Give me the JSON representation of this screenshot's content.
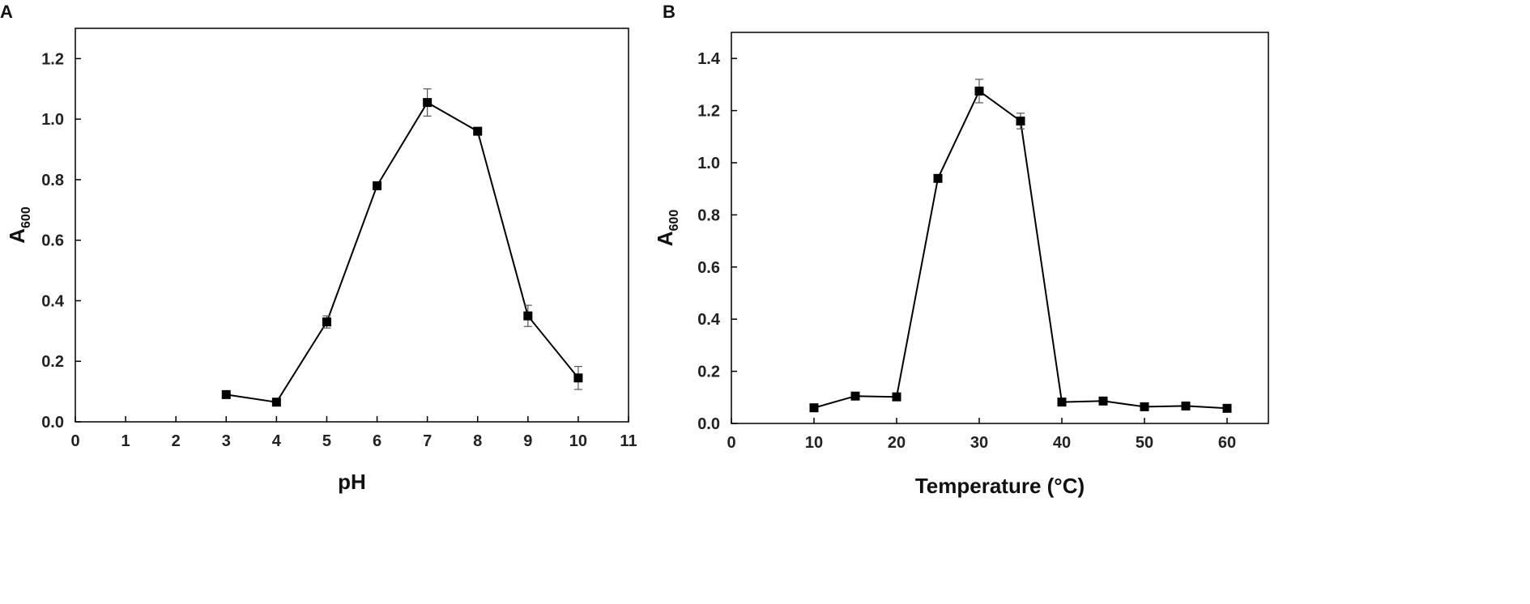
{
  "chart_data": [
    {
      "panel": "A",
      "type": "line",
      "xlabel": "pH",
      "ylabel_main": "A",
      "ylabel_sub": "600",
      "xlim": [
        0,
        11
      ],
      "ylim": [
        0,
        1.3
      ],
      "xticks": [
        0,
        1,
        2,
        3,
        4,
        5,
        6,
        7,
        8,
        9,
        10,
        11
      ],
      "xtick_labels": [
        "0",
        "1",
        "2",
        "3",
        "4",
        "5",
        "6",
        "7",
        "8",
        "9",
        "10",
        "11"
      ],
      "yticks": [
        0,
        0.2,
        0.4,
        0.6,
        0.8,
        1.0,
        1.2
      ],
      "ytick_labels": [
        "0.0",
        "0.2",
        "0.4",
        "0.6",
        "0.8",
        "1.0",
        "1.2"
      ],
      "grid": false,
      "color": "#000000",
      "marker": "square",
      "series": [
        {
          "x": [
            3,
            4,
            5,
            6,
            7,
            8,
            9,
            10
          ],
          "y": [
            0.09,
            0.065,
            0.33,
            0.78,
            1.055,
            0.96,
            0.35,
            0.145
          ],
          "err": [
            0,
            0,
            0.02,
            0,
            0.045,
            0,
            0.035,
            0.038
          ]
        }
      ]
    },
    {
      "panel": "B",
      "type": "line",
      "xlabel": "Temperature (°C)",
      "ylabel_main": "A",
      "ylabel_sub": "600",
      "xlim": [
        0,
        65
      ],
      "ylim": [
        0,
        1.5
      ],
      "xticks": [
        0,
        10,
        20,
        30,
        40,
        50,
        60
      ],
      "xtick_labels": [
        "0",
        "10",
        "20",
        "30",
        "40",
        "50",
        "60"
      ],
      "yticks": [
        0,
        0.2,
        0.4,
        0.6,
        0.8,
        1.0,
        1.2,
        1.4
      ],
      "ytick_labels": [
        "0.0",
        "0.2",
        "0.4",
        "0.6",
        "0.8",
        "1.0",
        "1.2",
        "1.4"
      ],
      "grid": false,
      "color": "#000000",
      "marker": "square",
      "series": [
        {
          "x": [
            10,
            15,
            20,
            25,
            30,
            35,
            40,
            45,
            50,
            55,
            60
          ],
          "y": [
            0.06,
            0.105,
            0.102,
            0.94,
            1.275,
            1.16,
            0.082,
            0.086,
            0.064,
            0.067,
            0.058
          ],
          "err": [
            0,
            0,
            0,
            0,
            0.045,
            0.03,
            0,
            0,
            0,
            0,
            0
          ]
        }
      ]
    }
  ]
}
